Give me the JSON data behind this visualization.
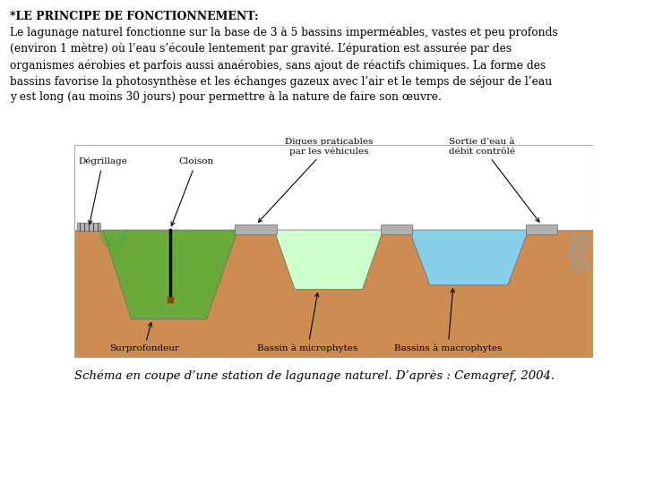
{
  "title_bold": "*LE PRINCIPE DE FONCTIONNEMENT:",
  "body_text": "Le lagunage naturel fonctionne sur la base de 3 à 5 bassins imperméables, vastes et peu profonds\n(environ 1 mètre) où l’eau s’écoule lentement par gravité. L’épuration est assurée par des\norganismes aérobies et parfois aussi anaérobies, sans ajout de réactifs chimiques. La forme des\nbassins favorise la photosynthèse et les échanges gazeux avec l’air et le temps de séjour de l’eau\ny est long (au moins 30 jours) pour permettre à la nature de faire son œuvre.",
  "caption": "Schéma en coupe d’une station de lagunage naturel. D’après : Cemagref, 2004.",
  "bg_color": "#ffffff",
  "soil_color": "#cd8c52",
  "basin1_color": "#6aaa3a",
  "basin2_color": "#ccffcc",
  "basin3_color": "#87ceeb",
  "dike_color": "#b0b0b0",
  "box_border": "#aaaaaa",
  "label_degr": "Dégrillage",
  "label_clois": "Cloison",
  "label_digues": "Digues praticables\npar les véhicules",
  "label_sortie": "Sortie d’eau à\ndébit contrôlé",
  "label_surp": "Surprofondeur",
  "label_micro": "Bassin à microphytes",
  "label_macro": "Bassins à macrophytes"
}
